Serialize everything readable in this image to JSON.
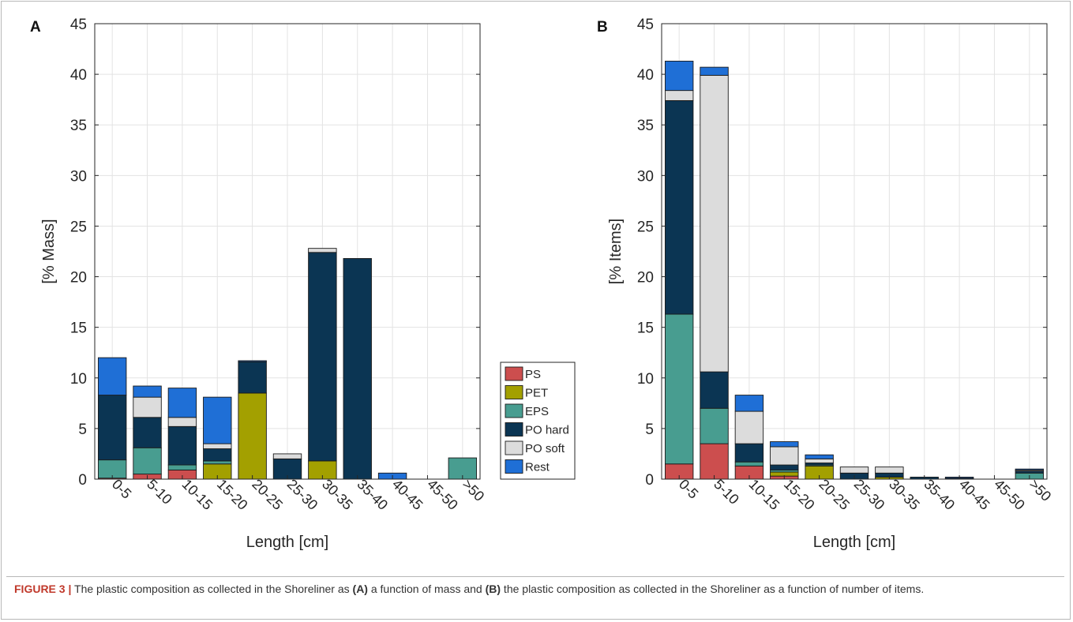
{
  "legend": {
    "items": [
      {
        "key": "PS",
        "label": "PS",
        "color": "#cc4e4e"
      },
      {
        "key": "PET",
        "label": "PET",
        "color": "#a3a000"
      },
      {
        "key": "EPS",
        "label": "EPS",
        "color": "#489d90"
      },
      {
        "key": "POhard",
        "label": "PO hard",
        "color": "#0b3553"
      },
      {
        "key": "POsoft",
        "label": "PO soft",
        "color": "#dcdcdc"
      },
      {
        "key": "Rest",
        "label": "Rest",
        "color": "#1f6fd6"
      }
    ]
  },
  "caption": {
    "label": "FIGURE 3 |",
    "part1": " The plastic composition as collected in the Shoreliner as ",
    "refA": "(A)",
    "part2": " a function of mass and ",
    "refB": "(B)",
    "part3": " the plastic composition as collected in the Shoreliner as a function of number of items."
  },
  "chart_data": [
    {
      "type": "bar",
      "stacked": true,
      "panel_label": "A",
      "xlabel": "Length [cm]",
      "ylabel": "[% Mass]",
      "ylim": [
        0,
        45
      ],
      "yticks": [
        "0",
        "5",
        "10",
        "15",
        "20",
        "25",
        "30",
        "35",
        "40",
        "45"
      ],
      "grid": true,
      "categories": [
        "0-5",
        "5-10",
        "10-15",
        "15-20",
        "20-25",
        "25-30",
        "30-35",
        "35-40",
        "40-45",
        "45-50",
        ">50"
      ],
      "series": [
        {
          "name": "PS",
          "values": [
            0.1,
            0.5,
            0.9,
            0,
            0,
            0,
            0,
            0,
            0,
            0,
            0
          ]
        },
        {
          "name": "PET",
          "values": [
            0,
            0,
            0,
            1.5,
            8.5,
            0,
            1.8,
            0,
            0,
            0,
            0
          ]
        },
        {
          "name": "EPS",
          "values": [
            1.8,
            2.6,
            0.5,
            0.3,
            0,
            0,
            0,
            0,
            0,
            0,
            2.1
          ]
        },
        {
          "name": "PO hard",
          "values": [
            6.4,
            3.0,
            3.8,
            1.2,
            3.1,
            2.0,
            20.6,
            21.8,
            0,
            0,
            0
          ]
        },
        {
          "name": "PO soft",
          "values": [
            0,
            2.0,
            0.9,
            0.5,
            0,
            0.5,
            0.4,
            0,
            0,
            0,
            0
          ]
        },
        {
          "name": "Rest",
          "values": [
            3.7,
            1.1,
            2.9,
            4.6,
            0.1,
            0,
            0,
            0,
            0.6,
            0,
            0
          ]
        }
      ]
    },
    {
      "type": "bar",
      "stacked": true,
      "panel_label": "B",
      "xlabel": "Length [cm]",
      "ylabel": "[% Items]",
      "ylim": [
        0,
        45
      ],
      "yticks": [
        "0",
        "5",
        "10",
        "15",
        "20",
        "25",
        "30",
        "35",
        "40",
        "45"
      ],
      "grid": true,
      "categories": [
        "0-5",
        "5-10",
        "10-15",
        "15-20",
        "20-25",
        "25-30",
        "30-35",
        "35-40",
        "40-45",
        "45-50",
        ">50"
      ],
      "series": [
        {
          "name": "PS",
          "values": [
            1.5,
            3.5,
            1.3,
            0.3,
            0,
            0,
            0,
            0,
            0,
            0,
            0
          ]
        },
        {
          "name": "PET",
          "values": [
            0,
            0,
            0,
            0.4,
            1.3,
            0,
            0.2,
            0,
            0,
            0,
            0
          ]
        },
        {
          "name": "EPS",
          "values": [
            14.8,
            3.5,
            0.4,
            0.2,
            0.1,
            0,
            0,
            0,
            0,
            0,
            0.6
          ]
        },
        {
          "name": "PO hard",
          "values": [
            21.1,
            3.6,
            1.8,
            0.5,
            0.2,
            0.6,
            0.4,
            0.2,
            0.1,
            0,
            0.2
          ]
        },
        {
          "name": "PO soft",
          "values": [
            1.0,
            29.3,
            3.2,
            1.8,
            0.4,
            0.6,
            0.6,
            0,
            0,
            0,
            0.1
          ]
        },
        {
          "name": "Rest",
          "values": [
            2.9,
            0.8,
            1.6,
            0.5,
            0.4,
            0,
            0,
            0,
            0.1,
            0,
            0.1
          ]
        }
      ]
    }
  ]
}
